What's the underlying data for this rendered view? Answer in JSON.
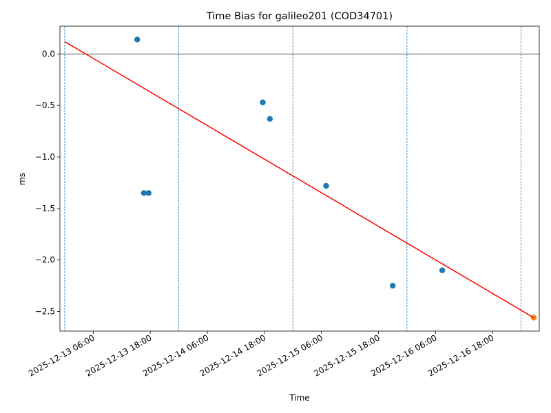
{
  "chart_data": {
    "type": "scatter",
    "title": "Time Bias for galileo201 (COD34701)",
    "x_label": "Time",
    "y_label": "ms",
    "xlim": [
      "2025-12-12 23:00",
      "2025-12-17 03:50"
    ],
    "xticks": [
      "2025-12-13 06:00",
      "2025-12-13 18:00",
      "2025-12-14 06:00",
      "2025-12-14 18:00",
      "2025-12-15 06:00",
      "2025-12-15 18:00",
      "2025-12-16 06:00",
      "2025-12-16 18:00"
    ],
    "ylim": [
      -2.69,
      0.27
    ],
    "yticks": [
      {
        "value": 0,
        "label": "0.0"
      },
      {
        "value": -0.5,
        "label": "−0.5"
      },
      {
        "value": -1,
        "label": "−1.0"
      },
      {
        "value": -1.5,
        "label": "−1.5"
      },
      {
        "value": -2,
        "label": "−2.0"
      },
      {
        "value": -2.5,
        "label": "−2.5"
      }
    ],
    "vlines": [
      "2025-12-13 00:00",
      "2025-12-14 00:00",
      "2025-12-15 00:00",
      "2025-12-16 00:00",
      "2025-12-17 00:00"
    ],
    "vline_color": "#1f77b4",
    "hlines": [
      0
    ],
    "hline_color": "#000000",
    "series": [
      {
        "type": "scatter",
        "color": "#1f77b4",
        "x": [
          "2025-12-13 15:15",
          "2025-12-13 16:40",
          "2025-12-13 17:40",
          "2025-12-14 17:40",
          "2025-12-14 19:10",
          "2025-12-15 07:00",
          "2025-12-15 21:00",
          "2025-12-16 07:25"
        ],
        "values": [
          0.14,
          -1.35,
          -1.35,
          -0.47,
          -0.63,
          -1.28,
          -2.25,
          -2.1
        ]
      },
      {
        "type": "scatter",
        "color": "#ff7f0e",
        "x": [
          "2025-12-17 02:40"
        ],
        "values": [
          -2.56
        ]
      },
      {
        "type": "line",
        "color": "#ff0000",
        "x": [
          "2025-12-13 00:00",
          "2025-12-17 02:40"
        ],
        "values": [
          0.12,
          -2.56
        ]
      }
    ]
  }
}
